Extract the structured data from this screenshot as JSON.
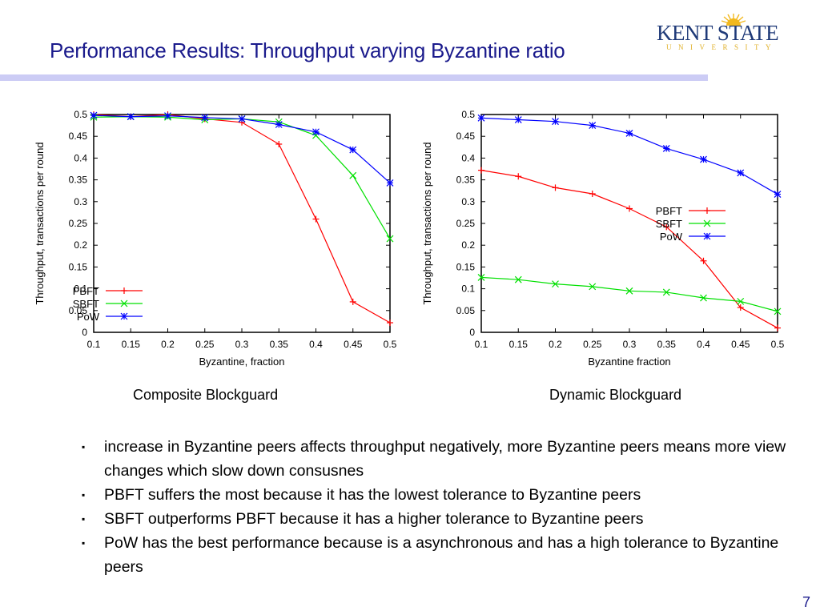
{
  "slide": {
    "title": "Performance Results: Throughput varying Byzantine ratio",
    "logo": {
      "line1": "KENT STATE",
      "line2": "UNIVERSITY",
      "icon": "sunburst-icon"
    },
    "title_bar_color": "#ccccf5",
    "page_number": "7"
  },
  "captions": [
    "Composite Blockguard",
    "Dynamic Blockguard"
  ],
  "bullets": [
    "increase in Byzantine peers affects throughput negatively, more Byzantine peers means more view changes which slow down consusnes",
    "PBFT suffers the most because it has the lowest tolerance to Byzantine peers",
    "SBFT outperforms PBFT because it has a higher tolerance to Byzantine peers",
    "PoW has the best performance because is a asynchronous and has a high tolerance to Byzantine peers"
  ],
  "chart_data": [
    {
      "type": "line",
      "title": "Composite Blockguard",
      "xlabel": "Byzantine, fraction",
      "ylabel": "Throughput, transactions per round",
      "x": [
        0.1,
        0.15,
        0.2,
        0.25,
        0.3,
        0.35,
        0.4,
        0.45,
        0.5
      ],
      "xticks": [
        "0.1",
        "0.15",
        "0.2",
        "0.25",
        "0.3",
        "0.35",
        "0.4",
        "0.45",
        "0.5"
      ],
      "yticks": [
        "0",
        "0.05",
        "0.1",
        "0.15",
        "0.2",
        "0.25",
        "0.3",
        "0.35",
        "0.4",
        "0.45",
        "0.5"
      ],
      "xlim": [
        0.1,
        0.5
      ],
      "ylim": [
        0,
        0.5
      ],
      "grid": false,
      "legend_position": "lower left",
      "series": [
        {
          "name": "PBFT",
          "color": "#ff0000",
          "marker": "+",
          "values": [
            0.5,
            0.495,
            0.5,
            0.49,
            0.482,
            0.432,
            0.26,
            0.07,
            0.022
          ]
        },
        {
          "name": "SBFT",
          "color": "#00e000",
          "marker": "x",
          "values": [
            0.494,
            0.495,
            0.494,
            0.488,
            0.49,
            0.483,
            0.452,
            0.36,
            0.215
          ]
        },
        {
          "name": "PoW",
          "color": "#0000ff",
          "marker": "*",
          "values": [
            0.498,
            0.495,
            0.497,
            0.493,
            0.49,
            0.477,
            0.46,
            0.419,
            0.343
          ]
        }
      ]
    },
    {
      "type": "line",
      "title": "Dynamic Blockguard",
      "xlabel": "Byzantine fraction",
      "ylabel": "Throughput, transactions per round",
      "x": [
        0.1,
        0.15,
        0.2,
        0.25,
        0.3,
        0.35,
        0.4,
        0.45,
        0.5
      ],
      "xticks": [
        "0.1",
        "0.15",
        "0.2",
        "0.25",
        "0.3",
        "0.35",
        "0.4",
        "0.45",
        "0.5"
      ],
      "yticks": [
        "0",
        "0.05",
        "0.1",
        "0.15",
        "0.2",
        "0.25",
        "0.3",
        "0.35",
        "0.4",
        "0.45",
        "0.5"
      ],
      "xlim": [
        0.1,
        0.5
      ],
      "ylim": [
        0,
        0.5
      ],
      "grid": false,
      "legend_position": "center right",
      "series": [
        {
          "name": "PBFT",
          "color": "#ff0000",
          "marker": "+",
          "values": [
            0.372,
            0.358,
            0.332,
            0.318,
            0.284,
            0.242,
            0.164,
            0.057,
            0.01
          ]
        },
        {
          "name": "SBFT",
          "color": "#00e000",
          "marker": "x",
          "values": [
            0.126,
            0.121,
            0.111,
            0.105,
            0.095,
            0.092,
            0.079,
            0.071,
            0.048
          ]
        },
        {
          "name": "PoW",
          "color": "#0000ff",
          "marker": "*",
          "values": [
            0.492,
            0.488,
            0.484,
            0.475,
            0.457,
            0.422,
            0.397,
            0.366,
            0.317
          ]
        }
      ]
    }
  ]
}
